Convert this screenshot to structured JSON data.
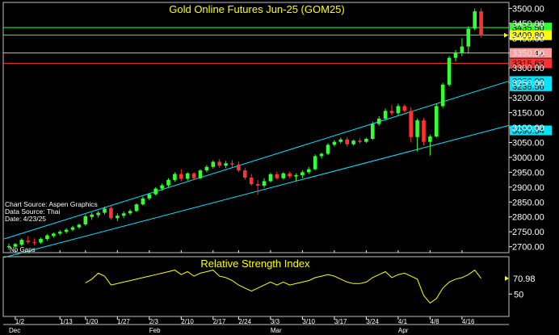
{
  "chart_data": [
    {
      "type": "candlestick",
      "title": "Gold Online Futures Jun-25 (GOM25)",
      "info": [
        "Chart Source: Aspen Graphics",
        "Data Source: Thai",
        "Date:   4/23/25"
      ],
      "gaps_label": "No Gaps",
      "y_ticks": [
        "3500.00",
        "3450.00",
        "3400.00",
        "3350.00",
        "3300.00",
        "3250.00",
        "3200.00",
        "3150.00",
        "3100.00",
        "3050.00",
        "3000.00",
        "2950.00",
        "2900.00",
        "2850.00",
        "2800.00",
        "2750.00",
        "2700.00"
      ],
      "ylim": [
        2680,
        3520
      ],
      "x_ticks": [
        {
          "label": "1/2",
          "i": 1
        },
        {
          "label": "1/13",
          "i": 8
        },
        {
          "label": "1/20",
          "i": 12
        },
        {
          "label": "1/27",
          "i": 17
        },
        {
          "label": "2/3",
          "i": 22
        },
        {
          "label": "2/10",
          "i": 27
        },
        {
          "label": "2/17",
          "i": 32
        },
        {
          "label": "2/24",
          "i": 36
        },
        {
          "label": "3/3",
          "i": 41
        },
        {
          "label": "3/10",
          "i": 46
        },
        {
          "label": "3/17",
          "i": 51
        },
        {
          "label": "3/24",
          "i": 56
        },
        {
          "label": "4/1",
          "i": 61
        },
        {
          "label": "4/8",
          "i": 66
        },
        {
          "label": "4/16",
          "i": 71
        }
      ],
      "month_labels": [
        {
          "label": "Dec",
          "i": 0
        },
        {
          "label": "Feb",
          "i": 22
        },
        {
          "label": "Mar",
          "i": 41
        },
        {
          "label": "Apr",
          "i": 61
        }
      ],
      "candles": [
        {
          "o": 2698,
          "h": 2710,
          "l": 2690,
          "c": 2702
        },
        {
          "o": 2700,
          "h": 2712,
          "l": 2695,
          "c": 2709
        },
        {
          "o": 2707,
          "h": 2728,
          "l": 2702,
          "c": 2723
        },
        {
          "o": 2720,
          "h": 2735,
          "l": 2710,
          "c": 2716
        },
        {
          "o": 2716,
          "h": 2728,
          "l": 2705,
          "c": 2713
        },
        {
          "o": 2714,
          "h": 2730,
          "l": 2710,
          "c": 2726
        },
        {
          "o": 2726,
          "h": 2742,
          "l": 2720,
          "c": 2738
        },
        {
          "o": 2736,
          "h": 2748,
          "l": 2730,
          "c": 2744
        },
        {
          "o": 2744,
          "h": 2756,
          "l": 2738,
          "c": 2750
        },
        {
          "o": 2750,
          "h": 2762,
          "l": 2744,
          "c": 2757
        },
        {
          "o": 2757,
          "h": 2770,
          "l": 2752,
          "c": 2765
        },
        {
          "o": 2765,
          "h": 2778,
          "l": 2760,
          "c": 2774
        },
        {
          "o": 2775,
          "h": 2808,
          "l": 2770,
          "c": 2802
        },
        {
          "o": 2800,
          "h": 2815,
          "l": 2790,
          "c": 2808
        },
        {
          "o": 2806,
          "h": 2820,
          "l": 2798,
          "c": 2814
        },
        {
          "o": 2814,
          "h": 2835,
          "l": 2808,
          "c": 2828
        },
        {
          "o": 2830,
          "h": 2840,
          "l": 2790,
          "c": 2796
        },
        {
          "o": 2796,
          "h": 2812,
          "l": 2786,
          "c": 2804
        },
        {
          "o": 2804,
          "h": 2818,
          "l": 2796,
          "c": 2812
        },
        {
          "o": 2812,
          "h": 2826,
          "l": 2806,
          "c": 2820
        },
        {
          "o": 2820,
          "h": 2846,
          "l": 2816,
          "c": 2842
        },
        {
          "o": 2842,
          "h": 2868,
          "l": 2838,
          "c": 2862
        },
        {
          "o": 2862,
          "h": 2880,
          "l": 2856,
          "c": 2876
        },
        {
          "o": 2876,
          "h": 2900,
          "l": 2872,
          "c": 2895
        },
        {
          "o": 2895,
          "h": 2912,
          "l": 2888,
          "c": 2906
        },
        {
          "o": 2906,
          "h": 2930,
          "l": 2900,
          "c": 2924
        },
        {
          "o": 2924,
          "h": 2950,
          "l": 2918,
          "c": 2944
        },
        {
          "o": 2944,
          "h": 2960,
          "l": 2920,
          "c": 2928
        },
        {
          "o": 2928,
          "h": 2950,
          "l": 2922,
          "c": 2946
        },
        {
          "o": 2946,
          "h": 2950,
          "l": 2925,
          "c": 2930
        },
        {
          "o": 2930,
          "h": 2960,
          "l": 2926,
          "c": 2956
        },
        {
          "o": 2956,
          "h": 2974,
          "l": 2950,
          "c": 2968
        },
        {
          "o": 2968,
          "h": 2990,
          "l": 2962,
          "c": 2985
        },
        {
          "o": 2985,
          "h": 2994,
          "l": 2965,
          "c": 2972
        },
        {
          "o": 2972,
          "h": 2988,
          "l": 2964,
          "c": 2980
        },
        {
          "o": 2980,
          "h": 2990,
          "l": 2966,
          "c": 2976
        },
        {
          "o": 2976,
          "h": 2986,
          "l": 2950,
          "c": 2956
        },
        {
          "o": 2956,
          "h": 2964,
          "l": 2925,
          "c": 2932
        },
        {
          "o": 2932,
          "h": 2944,
          "l": 2904,
          "c": 2910
        },
        {
          "o": 2910,
          "h": 2924,
          "l": 2874,
          "c": 2905
        },
        {
          "o": 2905,
          "h": 2930,
          "l": 2898,
          "c": 2920
        },
        {
          "o": 2920,
          "h": 2948,
          "l": 2916,
          "c": 2943
        },
        {
          "o": 2943,
          "h": 2952,
          "l": 2924,
          "c": 2930
        },
        {
          "o": 2930,
          "h": 2950,
          "l": 2926,
          "c": 2946
        },
        {
          "o": 2946,
          "h": 2952,
          "l": 2930,
          "c": 2936
        },
        {
          "o": 2936,
          "h": 2946,
          "l": 2920,
          "c": 2940
        },
        {
          "o": 2940,
          "h": 2956,
          "l": 2930,
          "c": 2950
        },
        {
          "o": 2950,
          "h": 2968,
          "l": 2944,
          "c": 2960
        },
        {
          "o": 2960,
          "h": 3010,
          "l": 2956,
          "c": 3004
        },
        {
          "o": 3004,
          "h": 3016,
          "l": 2996,
          "c": 3012
        },
        {
          "o": 3012,
          "h": 3048,
          "l": 3008,
          "c": 3042
        },
        {
          "o": 3042,
          "h": 3058,
          "l": 3036,
          "c": 3052
        },
        {
          "o": 3052,
          "h": 3066,
          "l": 3046,
          "c": 3060
        },
        {
          "o": 3060,
          "h": 3068,
          "l": 3036,
          "c": 3044
        },
        {
          "o": 3044,
          "h": 3060,
          "l": 3040,
          "c": 3056
        },
        {
          "o": 3056,
          "h": 3064,
          "l": 3046,
          "c": 3052
        },
        {
          "o": 3052,
          "h": 3066,
          "l": 3048,
          "c": 3062
        },
        {
          "o": 3062,
          "h": 3120,
          "l": 3058,
          "c": 3112
        },
        {
          "o": 3112,
          "h": 3138,
          "l": 3106,
          "c": 3130
        },
        {
          "o": 3130,
          "h": 3164,
          "l": 3126,
          "c": 3156
        },
        {
          "o": 3156,
          "h": 3176,
          "l": 3140,
          "c": 3148
        },
        {
          "o": 3148,
          "h": 3180,
          "l": 3142,
          "c": 3172
        },
        {
          "o": 3172,
          "h": 3178,
          "l": 3150,
          "c": 3156
        },
        {
          "o": 3156,
          "h": 3168,
          "l": 3050,
          "c": 3068
        },
        {
          "o": 3068,
          "h": 3130,
          "l": 3020,
          "c": 3124
        },
        {
          "o": 3124,
          "h": 3132,
          "l": 3040,
          "c": 3052
        },
        {
          "o": 3052,
          "h": 3076,
          "l": 3006,
          "c": 3070
        },
        {
          "o": 3070,
          "h": 3180,
          "l": 3066,
          "c": 3172
        },
        {
          "o": 3172,
          "h": 3250,
          "l": 3166,
          "c": 3244
        },
        {
          "o": 3244,
          "h": 3340,
          "l": 3238,
          "c": 3334
        },
        {
          "o": 3334,
          "h": 3360,
          "l": 3322,
          "c": 3352
        },
        {
          "o": 3352,
          "h": 3400,
          "l": 3340,
          "c": 3372
        },
        {
          "o": 3372,
          "h": 3440,
          "l": 3348,
          "c": 3432
        },
        {
          "o": 3432,
          "h": 3500,
          "l": 3426,
          "c": 3490
        },
        {
          "o": 3490,
          "h": 3500,
          "l": 3402,
          "c": 3410
        }
      ],
      "channel": {
        "upper": [
          {
            "i": 0,
            "v": 2726
          },
          {
            "i": 78,
            "v": 3256
          }
        ],
        "lower": [
          {
            "i": 0,
            "v": 2664
          },
          {
            "i": 78,
            "v": 3107
          }
        ]
      },
      "levels": [
        {
          "v": 3435.5,
          "label": "3435.50",
          "line": "#33ff33",
          "badge_bg": "#33ff33",
          "badge_fg": "#000000"
        },
        {
          "v": 3410.67,
          "label": "3410.67",
          "line": "#33ff33",
          "badge_bg": "#33ff33",
          "badge_fg": "#000000"
        },
        {
          "v": 3409.8,
          "label": "3409.80",
          "line": "none",
          "badge_bg": "#ffff00",
          "badge_fg": "#000000"
        },
        {
          "v": 3350.42,
          "label": "3350.42",
          "line": "#ff9f9f",
          "badge_bg": "#ff9f9f",
          "badge_fg": "#000000"
        },
        {
          "v": 3315.63,
          "label": "3315.63",
          "line": "#ff3030",
          "badge_bg": "#ff3030",
          "badge_fg": "#000000"
        },
        {
          "v": 3256.09,
          "label": "3256.09",
          "line": "none",
          "badge_bg": "#00e5ff",
          "badge_fg": "#000000"
        },
        {
          "v": 3238.56,
          "label": "3238.56",
          "line": "none",
          "badge_bg": "#00e5ff",
          "badge_fg": "#000000"
        },
        {
          "v": 3090.54,
          "label": "3090.54",
          "line": "none",
          "badge_bg": "#00e5ff",
          "badge_fg": "#000000"
        }
      ],
      "colors": {
        "up": "#33ff33",
        "down": "#ff3333",
        "channel": "#00e5ff",
        "frame": "#bfbfbf",
        "grid": "#0b2a6b"
      }
    },
    {
      "type": "line",
      "title": "Relative Strength Index",
      "y_ticks": [
        {
          "label": "50",
          "v": 50
        }
      ],
      "ylim": [
        20,
        100
      ],
      "last_label": "70.98",
      "values": [
        {
          "i": 12,
          "v": 65
        },
        {
          "i": 13,
          "v": 70
        },
        {
          "i": 14,
          "v": 78
        },
        {
          "i": 15,
          "v": 74
        },
        {
          "i": 16,
          "v": 62
        },
        {
          "i": 17,
          "v": 64
        },
        {
          "i": 18,
          "v": 66
        },
        {
          "i": 19,
          "v": 68
        },
        {
          "i": 20,
          "v": 70
        },
        {
          "i": 21,
          "v": 72
        },
        {
          "i": 22,
          "v": 74
        },
        {
          "i": 23,
          "v": 76
        },
        {
          "i": 24,
          "v": 78
        },
        {
          "i": 25,
          "v": 80
        },
        {
          "i": 26,
          "v": 82
        },
        {
          "i": 27,
          "v": 76
        },
        {
          "i": 28,
          "v": 80
        },
        {
          "i": 29,
          "v": 74
        },
        {
          "i": 30,
          "v": 78
        },
        {
          "i": 31,
          "v": 80
        },
        {
          "i": 32,
          "v": 82
        },
        {
          "i": 33,
          "v": 74
        },
        {
          "i": 34,
          "v": 72
        },
        {
          "i": 35,
          "v": 68
        },
        {
          "i": 36,
          "v": 62
        },
        {
          "i": 37,
          "v": 58
        },
        {
          "i": 38,
          "v": 54
        },
        {
          "i": 39,
          "v": 58
        },
        {
          "i": 40,
          "v": 62
        },
        {
          "i": 41,
          "v": 66
        },
        {
          "i": 42,
          "v": 62
        },
        {
          "i": 43,
          "v": 66
        },
        {
          "i": 44,
          "v": 62
        },
        {
          "i": 45,
          "v": 64
        },
        {
          "i": 46,
          "v": 66
        },
        {
          "i": 47,
          "v": 68
        },
        {
          "i": 48,
          "v": 72
        },
        {
          "i": 49,
          "v": 74
        },
        {
          "i": 50,
          "v": 76
        },
        {
          "i": 51,
          "v": 74
        },
        {
          "i": 52,
          "v": 70
        },
        {
          "i": 53,
          "v": 66
        },
        {
          "i": 54,
          "v": 64
        },
        {
          "i": 55,
          "v": 64
        },
        {
          "i": 56,
          "v": 66
        },
        {
          "i": 57,
          "v": 72
        },
        {
          "i": 58,
          "v": 76
        },
        {
          "i": 59,
          "v": 80
        },
        {
          "i": 60,
          "v": 72
        },
        {
          "i": 61,
          "v": 76
        },
        {
          "i": 62,
          "v": 78
        },
        {
          "i": 63,
          "v": 74
        },
        {
          "i": 64,
          "v": 70
        },
        {
          "i": 65,
          "v": 48
        },
        {
          "i": 66,
          "v": 38
        },
        {
          "i": 67,
          "v": 44
        },
        {
          "i": 68,
          "v": 58
        },
        {
          "i": 69,
          "v": 66
        },
        {
          "i": 70,
          "v": 70
        },
        {
          "i": 71,
          "v": 72
        },
        {
          "i": 72,
          "v": 76
        },
        {
          "i": 73,
          "v": 82
        },
        {
          "i": 74,
          "v": 71
        }
      ],
      "colors": {
        "line": "#ffff00",
        "arrow": "#ffff00"
      }
    }
  ]
}
